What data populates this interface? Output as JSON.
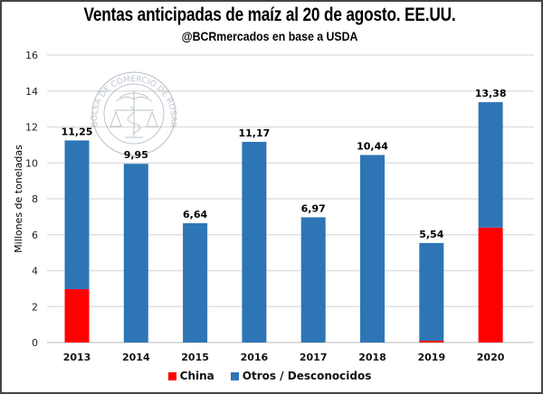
{
  "chart_data": {
    "type": "bar",
    "stacked": true,
    "title": "Ventas anticipadas de maíz al 20 de agosto. EE.UU.",
    "subtitle": "@BCRmercados en base a USDA",
    "xlabel": "",
    "ylabel": "Millones de toneladas",
    "ylim": [
      0,
      16
    ],
    "yticks": [
      0,
      2,
      4,
      6,
      8,
      10,
      12,
      14,
      16
    ],
    "grid": true,
    "categories": [
      "2013",
      "2014",
      "2015",
      "2016",
      "2017",
      "2018",
      "2019",
      "2020"
    ],
    "series": [
      {
        "name": "China",
        "color": "#FF0000",
        "values": [
          2.97,
          0,
          0,
          0,
          0,
          0,
          0.1,
          6.4
        ]
      },
      {
        "name": "Otros / Desconocidos",
        "color": "#2E75B6",
        "values": [
          8.28,
          9.95,
          6.64,
          11.17,
          6.97,
          10.44,
          5.44,
          6.98
        ]
      }
    ],
    "totals": [
      11.25,
      9.95,
      6.64,
      11.17,
      6.97,
      10.44,
      5.54,
      13.38
    ],
    "data_labels": [
      "11,25",
      "9,95",
      "6,64",
      "11,17",
      "6,97",
      "10,44",
      "5,54",
      "13,38"
    ],
    "legend": {
      "position": "bottom",
      "entries": [
        "China",
        "Otros / Desconocidos"
      ]
    }
  },
  "watermark": {
    "text": "BOLSA DE COMERCIO DE ROSARIO",
    "icon": "caduceus-scales-seal-icon"
  }
}
